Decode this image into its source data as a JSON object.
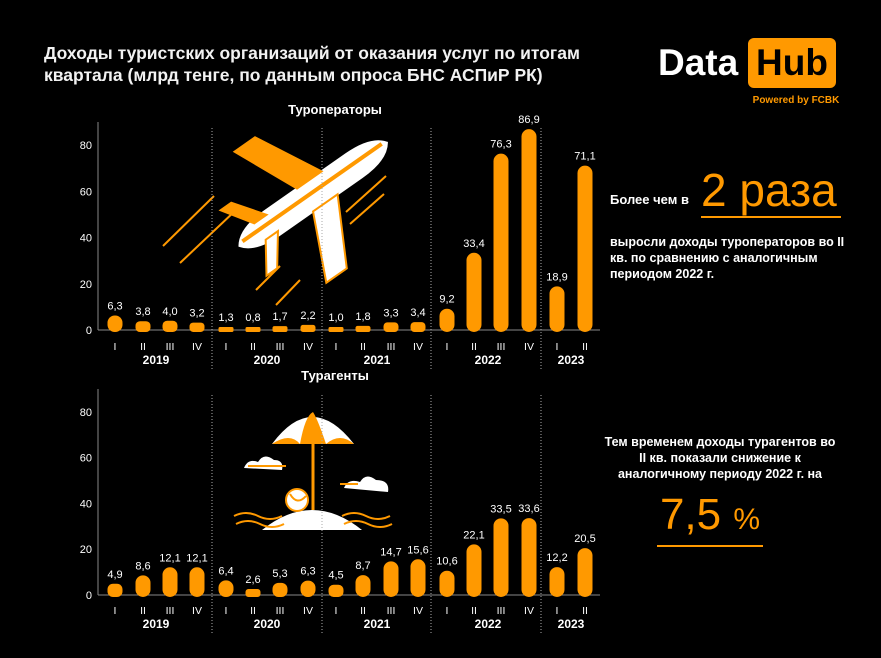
{
  "title": "Доходы туристских организаций от оказания услуг по итогам квартала (млрд тенге, по данным опроса БНС АСПиР РК)",
  "logo": {
    "data": "Data",
    "hub": "Hub",
    "powered": "Powered by FCBK"
  },
  "colors": {
    "accent": "#ff9900",
    "background": "#000000",
    "text": "#ffffff"
  },
  "chart_data": [
    {
      "type": "bar",
      "title": "Туроператоры",
      "ylim": [
        0,
        90
      ],
      "yticks": [
        0,
        20,
        40,
        60,
        80
      ],
      "categories": [
        "I",
        "II",
        "III",
        "IV",
        "I",
        "II",
        "III",
        "IV",
        "I",
        "II",
        "III",
        "IV",
        "I",
        "II",
        "III",
        "IV",
        "I",
        "II"
      ],
      "years": [
        {
          "label": "2019",
          "count": 4
        },
        {
          "label": "2020",
          "count": 4
        },
        {
          "label": "2021",
          "count": 4
        },
        {
          "label": "2022",
          "count": 4
        },
        {
          "label": "2023",
          "count": 2
        }
      ],
      "values": [
        6.3,
        3.8,
        4.0,
        3.2,
        1.3,
        0.8,
        1.7,
        2.2,
        1.0,
        1.8,
        3.3,
        3.4,
        9.2,
        33.4,
        76.3,
        86.9,
        18.9,
        71.1
      ],
      "labels": [
        "6,3",
        "3,8",
        "4,0",
        "3,2",
        "1,3",
        "0,8",
        "1,7",
        "2,2",
        "1,0",
        "1,8",
        "3,3",
        "3,4",
        "9,2",
        "33,4",
        "76,3",
        "86,9",
        "18,9",
        "71,1"
      ]
    },
    {
      "type": "bar",
      "title": "Турагенты",
      "ylim": [
        0,
        90
      ],
      "yticks": [
        0,
        20,
        40,
        60,
        80
      ],
      "categories": [
        "I",
        "II",
        "III",
        "IV",
        "I",
        "II",
        "III",
        "IV",
        "I",
        "II",
        "III",
        "IV",
        "I",
        "II",
        "III",
        "IV",
        "I",
        "II"
      ],
      "years": [
        {
          "label": "2019",
          "count": 4
        },
        {
          "label": "2020",
          "count": 4
        },
        {
          "label": "2021",
          "count": 4
        },
        {
          "label": "2022",
          "count": 4
        },
        {
          "label": "2023",
          "count": 2
        }
      ],
      "values": [
        4.9,
        8.6,
        12.1,
        12.1,
        6.4,
        2.6,
        5.3,
        6.3,
        4.5,
        8.7,
        14.7,
        15.6,
        10.6,
        22.1,
        33.5,
        33.6,
        12.2,
        20.5
      ],
      "labels": [
        "4,9",
        "8,6",
        "12,1",
        "12,1",
        "6,4",
        "2,6",
        "5,3",
        "6,3",
        "4,5",
        "8,7",
        "14,7",
        "15,6",
        "10,6",
        "22,1",
        "33,5",
        "33,6",
        "12,2",
        "20,5"
      ]
    }
  ],
  "notes": {
    "operators_pre": "Более чем в",
    "operators_big": "2 раза",
    "operators_text": "выросли доходы туроператоров во II кв. по сравнению с аналогичным периодом 2022 г.",
    "agents_text": "Тем временем доходы турагентов во II кв. показали снижение к аналогичному периоду 2022 г. на",
    "agents_big": "7,5",
    "agents_pct": "%"
  }
}
